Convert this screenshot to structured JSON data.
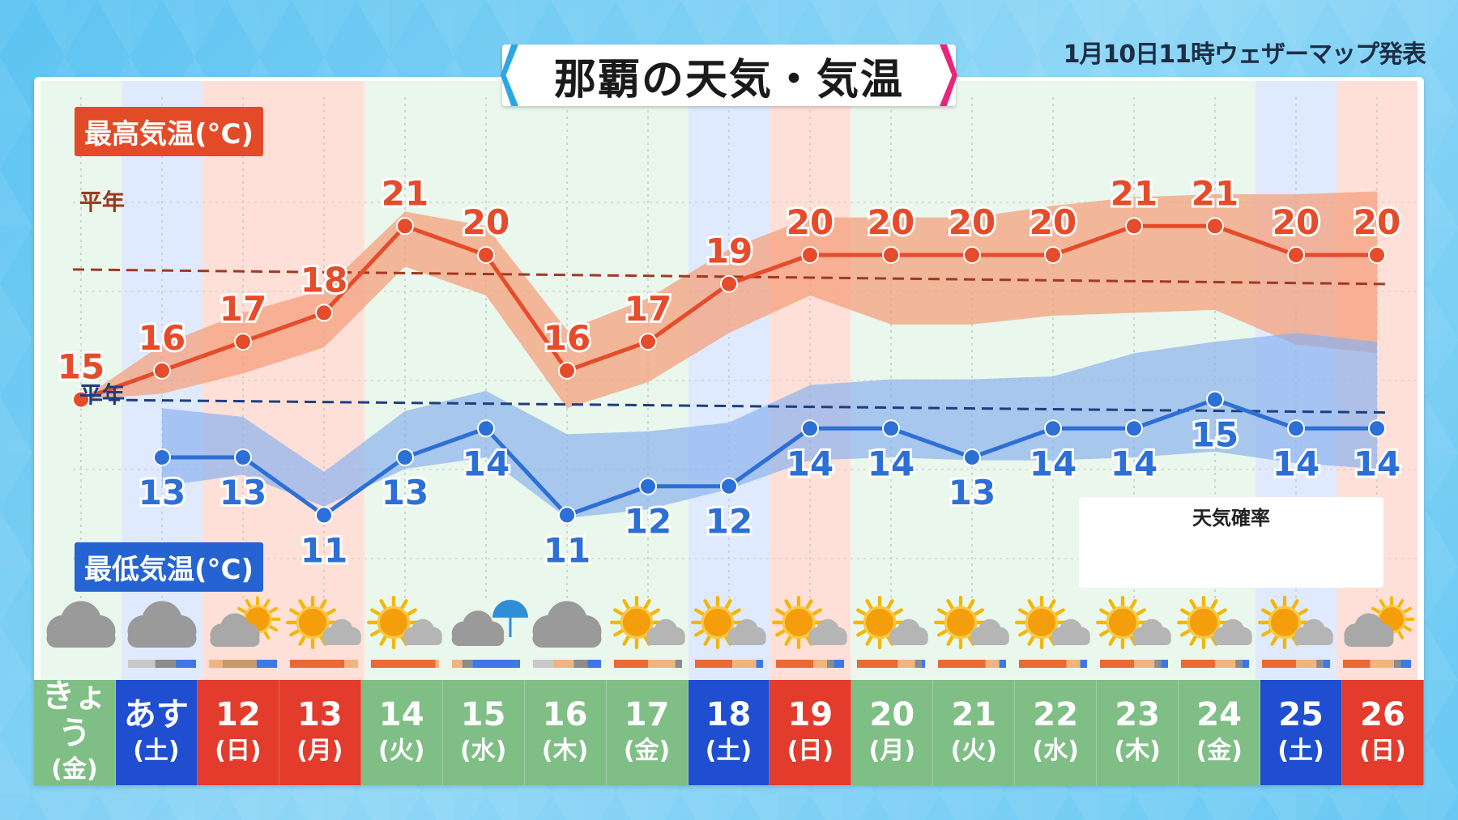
{
  "header": {
    "title": "那覇の天気・気温",
    "issued": "1月10日11時ウェザーマップ発表"
  },
  "labels": {
    "max_label": "最高気温(°C)",
    "min_label": "最低気温(°C)",
    "normal_max": "平年",
    "normal_min": "平年",
    "legend_title": "天気確率"
  },
  "colors": {
    "max_line": "#e64b2a",
    "max_band": "#f4a07e",
    "min_line": "#2c6fd6",
    "min_band": "#8bb2ee",
    "weekday_cell": "#7fbf86",
    "saturday_cell": "#1f4fd0",
    "sunday_cell": "#e33b2c",
    "saturday_col": "#dfeaff",
    "sunday_col": "#ffe0d8",
    "weekday_col": "#eaf7ec",
    "legend_sunny": "#ea6a35",
    "legend_sunny_cloudy": "#f0b47e",
    "legend_cloudy": "#c8c8c8",
    "legend_cloudy_sunny": "#c89a6a",
    "legend_heavy_cloud": "#8c8c8c",
    "legend_rain": "#3d78e6"
  },
  "legend_icons": [
    "sun-icon",
    "sun-cloud-icon",
    "cloud-icon",
    "cloud-sun-icon",
    "dark-cloud-icon",
    "umbrella-icon"
  ],
  "days": [
    {
      "d1": "きょう",
      "d2": "(金)",
      "kind": "weekday",
      "icon": "cloud-icon"
    },
    {
      "d1": "あす",
      "d2": "(土)",
      "kind": "saturday",
      "icon": "cloud-icon"
    },
    {
      "d1": "12",
      "d2": "(日)",
      "kind": "sunday",
      "icon": "cloud-sun-icon"
    },
    {
      "d1": "13",
      "d2": "(月)",
      "kind": "holiday",
      "icon": "sun-cloud-icon"
    },
    {
      "d1": "14",
      "d2": "(火)",
      "kind": "weekday",
      "icon": "sun-cloud-icon"
    },
    {
      "d1": "15",
      "d2": "(水)",
      "kind": "weekday",
      "icon": "cloud-umbrella-icon"
    },
    {
      "d1": "16",
      "d2": "(木)",
      "kind": "weekday",
      "icon": "cloud-icon"
    },
    {
      "d1": "17",
      "d2": "(金)",
      "kind": "weekday",
      "icon": "sun-cloud-icon"
    },
    {
      "d1": "18",
      "d2": "(土)",
      "kind": "saturday",
      "icon": "sun-cloud-icon"
    },
    {
      "d1": "19",
      "d2": "(日)",
      "kind": "sunday",
      "icon": "sun-cloud-icon"
    },
    {
      "d1": "20",
      "d2": "(月)",
      "kind": "weekday",
      "icon": "sun-cloud-icon"
    },
    {
      "d1": "21",
      "d2": "(火)",
      "kind": "weekday",
      "icon": "sun-cloud-icon"
    },
    {
      "d1": "22",
      "d2": "(水)",
      "kind": "weekday",
      "icon": "sun-cloud-icon"
    },
    {
      "d1": "23",
      "d2": "(木)",
      "kind": "weekday",
      "icon": "sun-cloud-icon"
    },
    {
      "d1": "24",
      "d2": "(金)",
      "kind": "weekday",
      "icon": "sun-cloud-icon"
    },
    {
      "d1": "25",
      "d2": "(土)",
      "kind": "saturday",
      "icon": "sun-cloud-icon"
    },
    {
      "d1": "26",
      "d2": "(日)",
      "kind": "sunday",
      "icon": "cloud-sun-icon"
    }
  ],
  "chart_data": {
    "type": "line",
    "title": "那覇の天気・気温",
    "categories": [
      "きょう(金)",
      "あす(土)",
      "12(日)",
      "13(月)",
      "14(火)",
      "15(水)",
      "16(木)",
      "17(金)",
      "18(土)",
      "19(日)",
      "20(月)",
      "21(火)",
      "22(水)",
      "23(木)",
      "24(金)",
      "25(土)",
      "26(日)"
    ],
    "series": [
      {
        "name": "最高気温(°C)",
        "values": [
          15,
          16,
          17,
          18,
          21,
          20,
          16,
          17,
          19,
          20,
          20,
          20,
          20,
          21,
          21,
          20,
          20
        ]
      },
      {
        "name": "最低気温(°C)",
        "values": [
          null,
          13,
          13,
          11,
          13,
          14,
          11,
          12,
          12,
          14,
          14,
          13,
          14,
          14,
          15,
          14,
          14
        ]
      }
    ],
    "normal_max": 19.5,
    "normal_min": 15.0,
    "max_band_lower": [
      15,
      15.2,
      15.9,
      16.8,
      19.6,
      18.6,
      14.7,
      15.6,
      17.3,
      18.6,
      17.6,
      17.6,
      17.9,
      18.0,
      18.1,
      16.9,
      16.6
    ],
    "max_band_upper": [
      15,
      16.9,
      18.0,
      18.8,
      21.5,
      21.0,
      17.4,
      18.5,
      20.2,
      21.3,
      21.3,
      21.3,
      21.7,
      22.0,
      22.1,
      22.1,
      22.2
    ],
    "min_band_lower": [
      null,
      12.0,
      12.4,
      11.3,
      12.6,
      13.0,
      10.9,
      11.2,
      11.9,
      12.9,
      13.0,
      12.9,
      12.9,
      13.0,
      13.2,
      12.8,
      12.6
    ],
    "min_band_upper": [
      null,
      14.7,
      14.4,
      12.5,
      14.6,
      15.3,
      13.8,
      13.9,
      14.2,
      15.5,
      15.7,
      15.7,
      15.8,
      16.6,
      17.0,
      17.3,
      17.0
    ],
    "ylim": [
      9.5,
      23.5
    ],
    "precip_bars": [
      [],
      [
        {
          "c": "legend_cloudy",
          "w": 0.4
        },
        {
          "c": "legend_heavy_cloud",
          "w": 0.3
        },
        {
          "c": "legend_rain",
          "w": 0.3
        }
      ],
      [
        {
          "c": "legend_sunny_cloudy",
          "w": 0.2
        },
        {
          "c": "legend_cloudy_sunny",
          "w": 0.5
        },
        {
          "c": "legend_rain",
          "w": 0.3
        }
      ],
      [
        {
          "c": "legend_sunny",
          "w": 0.8
        },
        {
          "c": "legend_sunny_cloudy",
          "w": 0.2
        }
      ],
      [
        {
          "c": "legend_sunny",
          "w": 0.95
        },
        {
          "c": "legend_sunny_cloudy",
          "w": 0.05
        }
      ],
      [
        {
          "c": "legend_sunny_cloudy",
          "w": 0.15
        },
        {
          "c": "legend_heavy_cloud",
          "w": 0.15
        },
        {
          "c": "legend_rain",
          "w": 0.7
        }
      ],
      [
        {
          "c": "legend_cloudy",
          "w": 0.3
        },
        {
          "c": "legend_sunny_cloudy",
          "w": 0.3
        },
        {
          "c": "legend_heavy_cloud",
          "w": 0.2
        },
        {
          "c": "legend_rain",
          "w": 0.2
        }
      ],
      [
        {
          "c": "legend_sunny",
          "w": 0.5
        },
        {
          "c": "legend_sunny_cloudy",
          "w": 0.4
        },
        {
          "c": "legend_heavy_cloud",
          "w": 0.1
        }
      ],
      [
        {
          "c": "legend_sunny",
          "w": 0.55
        },
        {
          "c": "legend_sunny_cloudy",
          "w": 0.35
        },
        {
          "c": "legend_rain",
          "w": 0.1
        }
      ],
      [
        {
          "c": "legend_sunny",
          "w": 0.55
        },
        {
          "c": "legend_sunny_cloudy",
          "w": 0.2
        },
        {
          "c": "legend_heavy_cloud",
          "w": 0.1
        },
        {
          "c": "legend_rain",
          "w": 0.15
        }
      ],
      [
        {
          "c": "legend_sunny",
          "w": 0.6
        },
        {
          "c": "legend_sunny_cloudy",
          "w": 0.25
        },
        {
          "c": "legend_heavy_cloud",
          "w": 0.1
        },
        {
          "c": "legend_rain",
          "w": 0.05
        }
      ],
      [
        {
          "c": "legend_sunny",
          "w": 0.7
        },
        {
          "c": "legend_sunny_cloudy",
          "w": 0.2
        },
        {
          "c": "legend_rain",
          "w": 0.1
        }
      ],
      [
        {
          "c": "legend_sunny",
          "w": 0.7
        },
        {
          "c": "legend_sunny_cloudy",
          "w": 0.2
        },
        {
          "c": "legend_rain",
          "w": 0.1
        }
      ],
      [
        {
          "c": "legend_sunny",
          "w": 0.5
        },
        {
          "c": "legend_sunny_cloudy",
          "w": 0.3
        },
        {
          "c": "legend_heavy_cloud",
          "w": 0.1
        },
        {
          "c": "legend_rain",
          "w": 0.1
        }
      ],
      [
        {
          "c": "legend_sunny",
          "w": 0.5
        },
        {
          "c": "legend_sunny_cloudy",
          "w": 0.3
        },
        {
          "c": "legend_heavy_cloud",
          "w": 0.1
        },
        {
          "c": "legend_rain",
          "w": 0.1
        }
      ],
      [
        {
          "c": "legend_sunny",
          "w": 0.5
        },
        {
          "c": "legend_sunny_cloudy",
          "w": 0.3
        },
        {
          "c": "legend_heavy_cloud",
          "w": 0.1
        },
        {
          "c": "legend_rain",
          "w": 0.1
        }
      ],
      [
        {
          "c": "legend_sunny",
          "w": 0.4
        },
        {
          "c": "legend_sunny_cloudy",
          "w": 0.35
        },
        {
          "c": "legend_heavy_cloud",
          "w": 0.1
        },
        {
          "c": "legend_rain",
          "w": 0.15
        }
      ]
    ]
  }
}
